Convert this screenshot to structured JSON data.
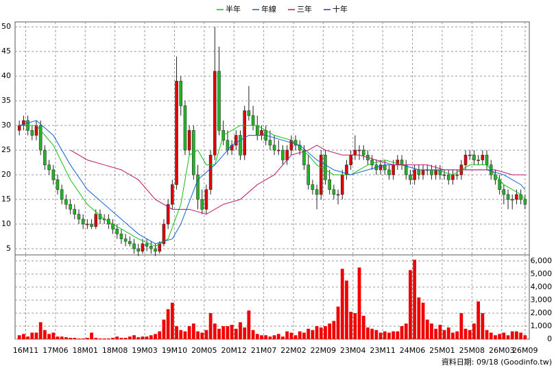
{
  "chart_data": {
    "type": "candlestick",
    "legend": "top",
    "grid": true,
    "footer": "資料日期: 09/18  (Goodinfo.tw)",
    "up_color": "#e00000",
    "down_color": "#22b422",
    "volume_color": "#f00000",
    "xlim": [
      -1,
      120
    ],
    "xticks": [
      {
        "value": 1.5,
        "label": "16M11"
      },
      {
        "value": 8.5,
        "label": "17M06"
      },
      {
        "value": 15.5,
        "label": "18M01"
      },
      {
        "value": 22.5,
        "label": "18M08"
      },
      {
        "value": 29.5,
        "label": "19M03"
      },
      {
        "value": 36.5,
        "label": "19M10"
      },
      {
        "value": 43.5,
        "label": "20M05"
      },
      {
        "value": 50.5,
        "label": "20M12"
      },
      {
        "value": 57.5,
        "label": "21M07"
      },
      {
        "value": 64.5,
        "label": "22M02"
      },
      {
        "value": 71.5,
        "label": "22M09"
      },
      {
        "value": 78.5,
        "label": "23M04"
      },
      {
        "value": 85.5,
        "label": "23M11"
      },
      {
        "value": 92.5,
        "label": "24M06"
      },
      {
        "value": 99.5,
        "label": "25M01"
      },
      {
        "value": 106.5,
        "label": "25M08"
      },
      {
        "value": 113.5,
        "label": "26M03"
      },
      {
        "value": 119,
        "label": "26M09"
      }
    ],
    "ylim": [
      3.75,
      51
    ],
    "yticks": [
      5,
      10,
      15,
      20,
      25,
      30,
      35,
      40,
      45,
      50
    ],
    "y2lim": [
      0,
      6470
    ],
    "y2ticks": [
      0,
      {
        "value": 1000,
        "label": "1,000"
      },
      {
        "value": 2000,
        "label": "2,000"
      },
      {
        "value": 3000,
        "label": "3,000"
      },
      {
        "value": 4000,
        "label": "4,000"
      },
      {
        "value": 5000,
        "label": "5,000"
      },
      {
        "value": 6000,
        "label": "6,000"
      }
    ],
    "open": [
      29,
      30,
      31,
      29,
      28,
      30,
      25,
      22,
      21,
      19,
      17,
      15,
      14,
      13,
      12,
      11,
      10,
      10,
      9.5,
      12,
      11,
      11,
      10,
      9,
      8,
      7,
      6.5,
      6,
      5,
      4.5,
      6,
      5.5,
      5,
      4.5,
      6,
      10,
      14,
      18,
      39,
      34,
      25,
      29,
      20,
      15,
      13,
      17,
      24,
      41,
      29,
      27,
      25,
      26,
      28,
      24,
      33,
      32,
      30,
      28,
      29,
      27,
      26,
      25,
      25,
      23,
      25,
      27,
      26,
      25,
      22,
      18,
      17,
      16,
      24,
      19,
      17,
      16,
      16,
      20,
      22,
      24,
      25,
      25,
      24,
      23,
      22,
      21,
      22,
      21,
      20,
      22,
      23,
      22,
      20,
      19,
      21,
      20,
      21,
      21,
      20,
      21,
      20,
      20,
      19,
      20,
      20,
      22,
      24,
      24,
      23,
      23,
      24,
      22,
      20,
      19,
      17,
      16,
      15,
      15,
      16,
      15
    ],
    "high": [
      31,
      32,
      32,
      30,
      31,
      31,
      26,
      23,
      22,
      20,
      18,
      16,
      15,
      14,
      13,
      12,
      11,
      11,
      13,
      13,
      12,
      12,
      11,
      10,
      9,
      8,
      7.5,
      7,
      6,
      7,
      7,
      6.5,
      6,
      6.5,
      11,
      15,
      19,
      44,
      40,
      35,
      30,
      30,
      22,
      17,
      18,
      25,
      50,
      46,
      31,
      29,
      27,
      29,
      29,
      34,
      38,
      34,
      32,
      30,
      30,
      29,
      28,
      27,
      26,
      26,
      28,
      28,
      27,
      26,
      24,
      19,
      18,
      25,
      25,
      21,
      18,
      17,
      21,
      23,
      25,
      28,
      26,
      26,
      25,
      24,
      23,
      23,
      23,
      22,
      23,
      24,
      24,
      23,
      21,
      22,
      22,
      22,
      22,
      22,
      22,
      22,
      21,
      21,
      21,
      21,
      23,
      25,
      25,
      25,
      24,
      25,
      25,
      23,
      21,
      20,
      18,
      17,
      16,
      17,
      17,
      16
    ],
    "low": [
      28,
      29,
      28,
      27,
      27,
      24,
      21,
      20,
      18,
      16,
      14,
      13,
      12,
      11,
      10,
      9,
      9,
      9,
      9,
      10,
      10,
      9,
      8,
      7,
      6,
      5.5,
      5.5,
      4,
      3.5,
      4,
      4.5,
      4,
      3.5,
      4,
      5.5,
      9,
      13,
      17,
      32,
      24,
      24,
      19,
      13,
      12,
      12,
      16,
      23,
      28,
      26,
      24,
      24,
      25,
      23,
      23,
      31,
      29,
      27,
      27,
      26,
      25,
      24,
      24,
      22,
      22,
      24,
      25,
      24,
      21,
      17,
      16,
      13,
      15,
      18,
      16,
      15,
      14,
      15,
      19,
      21,
      23,
      23,
      23,
      22,
      21,
      20,
      20,
      20,
      19,
      19,
      21,
      21,
      19,
      18,
      18,
      19,
      19,
      20,
      19,
      19,
      19,
      19,
      18,
      18,
      19,
      19,
      21,
      23,
      22,
      22,
      22,
      21,
      19,
      18,
      16,
      14,
      13,
      13,
      14,
      14,
      13
    ],
    "close": [
      30,
      31,
      29,
      28,
      30,
      25,
      22,
      21,
      19,
      17,
      15,
      14,
      13,
      12,
      11,
      10,
      10,
      9.5,
      12,
      11,
      11,
      10,
      9,
      8,
      7,
      6.5,
      6,
      5,
      4.5,
      6,
      5.5,
      5,
      4.5,
      6,
      10,
      14,
      18,
      39,
      34,
      25,
      29,
      20,
      15,
      13,
      17,
      24,
      41,
      29,
      27,
      25,
      26,
      28,
      24,
      33,
      32,
      30,
      28,
      29,
      27,
      26,
      25,
      25,
      23,
      25,
      27,
      26,
      25,
      22,
      18,
      17,
      16,
      24,
      19,
      17,
      16,
      16,
      20,
      22,
      24,
      25,
      25,
      24,
      23,
      22,
      21,
      22,
      21,
      20,
      22,
      23,
      22,
      20,
      19,
      21,
      20,
      21,
      21,
      20,
      21,
      20,
      20,
      19,
      20,
      20,
      22,
      24,
      24,
      23,
      23,
      24,
      22,
      20,
      19,
      17,
      16,
      15,
      15,
      16,
      15,
      14
    ],
    "volume": [
      300,
      400,
      200,
      500,
      500,
      1300,
      700,
      400,
      500,
      200,
      200,
      150,
      100,
      100,
      50,
      50,
      100,
      500,
      100,
      50,
      50,
      50,
      100,
      200,
      100,
      100,
      200,
      300,
      150,
      200,
      200,
      300,
      400,
      600,
      1500,
      2300,
      2800,
      1000,
      700,
      600,
      1000,
      1200,
      600,
      500,
      700,
      2000,
      1200,
      800,
      1000,
      1000,
      1100,
      800,
      1300,
      900,
      2200,
      700,
      400,
      300,
      300,
      200,
      300,
      400,
      200,
      600,
      500,
      300,
      600,
      500,
      800,
      700,
      1000,
      900,
      1000,
      1200,
      1400,
      2500,
      5400,
      4500,
      2100,
      2000,
      5500,
      1800,
      900,
      800,
      700,
      500,
      600,
      500,
      600,
      600,
      1000,
      1200,
      5300,
      6100,
      3200,
      2800,
      1500,
      1200,
      800,
      1100,
      700,
      900,
      500,
      600,
      2000,
      800,
      700,
      1200,
      2900,
      2000,
      700,
      500,
      300,
      400,
      500,
      300,
      600,
      600,
      500,
      300
    ],
    "series": [
      {
        "name": "半年",
        "color": "#10c010",
        "x": [
          0,
          4,
          8,
          12,
          16,
          20,
          24,
          28,
          32,
          35,
          38,
          40,
          42,
          44,
          46,
          48,
          52,
          56,
          60,
          64,
          68,
          70,
          74,
          78,
          82,
          86,
          90,
          94,
          98,
          102,
          106,
          110,
          114,
          118,
          119
        ],
        "values": [
          30,
          30,
          26,
          19,
          14,
          11,
          9,
          7,
          5.5,
          7,
          14,
          24,
          25,
          22,
          22,
          28,
          30,
          30,
          28,
          27,
          24,
          22,
          20,
          20,
          22,
          23,
          22,
          21,
          21,
          20,
          22,
          22,
          18,
          16,
          15
        ]
      },
      {
        "name": "年線",
        "color": "#1060d8",
        "x": [
          0,
          4,
          8,
          12,
          16,
          20,
          24,
          28,
          32,
          36,
          38,
          42,
          46,
          50,
          54,
          58,
          62,
          66,
          70,
          74,
          78,
          82,
          86,
          90,
          94,
          98,
          102,
          106,
          110,
          114,
          118,
          119
        ],
        "values": [
          30,
          31,
          28,
          22,
          17,
          14,
          11,
          8,
          6,
          7,
          10,
          19,
          22,
          26,
          28,
          28,
          27,
          26,
          23,
          21,
          20,
          21,
          22,
          22,
          21,
          21,
          21,
          21,
          21,
          20,
          18,
          17
        ]
      },
      {
        "name": "三年",
        "color": "#c0106a",
        "x": [
          12,
          16,
          20,
          24,
          28,
          32,
          36,
          40,
          44,
          48,
          52,
          56,
          60,
          64,
          68,
          70,
          72,
          76,
          80,
          84,
          88,
          92,
          96,
          100,
          104,
          108,
          112,
          116,
          119
        ],
        "values": [
          25,
          23,
          22,
          21,
          19,
          15,
          13,
          13,
          12,
          14,
          15,
          18,
          20,
          24,
          25,
          26,
          25,
          24,
          24,
          23,
          22,
          22,
          22,
          21,
          21,
          21,
          21,
          20,
          20
        ]
      },
      {
        "name": "十年",
        "color": "#7010b0",
        "x": [],
        "values": []
      }
    ]
  }
}
